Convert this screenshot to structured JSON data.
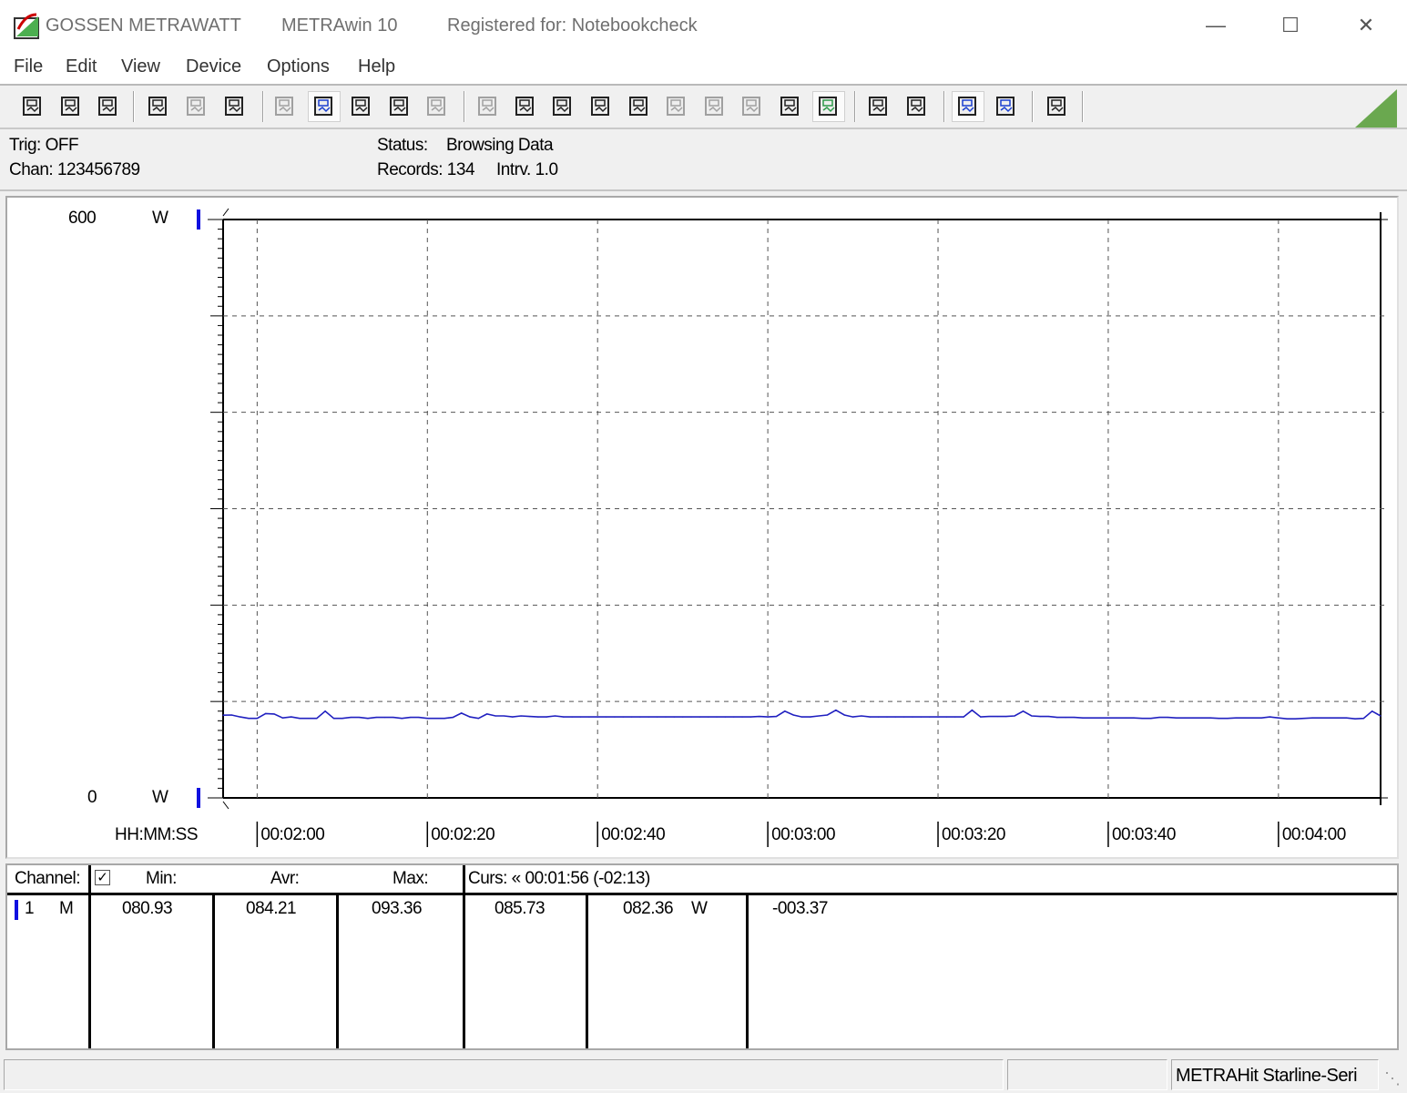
{
  "window": {
    "brand": "GOSSEN METRAWATT",
    "app_title": "METRAwin 10",
    "registration": "Registered for: Notebookcheck",
    "controls": [
      "minimize-icon",
      "maximize-icon",
      "close-icon"
    ]
  },
  "menu": [
    "File",
    "Edit",
    "View",
    "Device",
    "Options",
    "Help"
  ],
  "toolbar": {
    "buttons": [
      {
        "icon": "save-icon"
      },
      {
        "icon": "save-as-icon"
      },
      {
        "icon": "open-folder-icon"
      },
      {
        "icon": "read-memory-icon"
      },
      {
        "icon": "clear-memory-icon",
        "disabled": true
      },
      {
        "icon": "memory-mode-icon"
      },
      {
        "icon": "numeric-display-icon",
        "disabled": true
      },
      {
        "icon": "waveform-view-icon",
        "pressed": true
      },
      {
        "icon": "crosshair-icon"
      },
      {
        "icon": "table-view-icon"
      },
      {
        "icon": "histogram-icon",
        "disabled": true
      },
      {
        "icon": "export-icon",
        "disabled": true
      },
      {
        "icon": "import-icon"
      },
      {
        "icon": "channel-settings-icon"
      },
      {
        "icon": "device-settings-icon"
      },
      {
        "icon": "function-icon"
      },
      {
        "icon": "device-transfer-icon",
        "disabled": true
      },
      {
        "icon": "trigger-icon",
        "disabled": true
      },
      {
        "icon": "sampling-icon",
        "disabled": true
      },
      {
        "icon": "timer-icon"
      },
      {
        "icon": "bug-icon",
        "pressed": true
      },
      {
        "icon": "print-graph-icon"
      },
      {
        "icon": "print-icon"
      },
      {
        "icon": "zoom-waveform-icon",
        "pressed": true
      },
      {
        "icon": "zoom-peak-icon"
      },
      {
        "icon": "comment-icon"
      }
    ],
    "signal_color": "#6aa84f"
  },
  "info": {
    "trig": "Trig: OFF",
    "chan": "Chan:  123456789",
    "status_label": "Status:",
    "status_value": "Browsing Data",
    "records": "Records: 134",
    "interval": "Intrv. 1.0"
  },
  "chart_data": {
    "type": "line",
    "y_top_label": "600",
    "y_bottom_label": "0",
    "y_unit": "W",
    "ylim": [
      0,
      600
    ],
    "y_grid_step": 100,
    "x_label": "HH:MM:SS",
    "x_ticks": [
      "00:02:00",
      "00:02:20",
      "00:02:40",
      "00:03:00",
      "00:03:20",
      "00:03:40",
      "00:04:00"
    ],
    "x_start": "00:01:56",
    "interval_s": 1,
    "grid": true,
    "line_color": "#2020c0",
    "channel_marker_color": "#1010e0",
    "series": [
      {
        "values": [
          85.8,
          86,
          84,
          82.5,
          82.5,
          87.5,
          87,
          83,
          84,
          82.5,
          82.5,
          82.5,
          90,
          82.5,
          82.5,
          83.5,
          83.5,
          82.5,
          83.5,
          83.5,
          83.5,
          82.5,
          83.5,
          83.5,
          82.5,
          82.5,
          82.5,
          83.5,
          88,
          84,
          82.5,
          87,
          85,
          85,
          84,
          85,
          84.5,
          84,
          84,
          85,
          84,
          84,
          84,
          84,
          84,
          84,
          84,
          84,
          84,
          84,
          84,
          84,
          84,
          84,
          84,
          84,
          84,
          84,
          84,
          84,
          84,
          84,
          84,
          84.5,
          84,
          84.5,
          90,
          86,
          84,
          84,
          85,
          86,
          91,
          86,
          84,
          85,
          84,
          84,
          84,
          84,
          84,
          84,
          84,
          84,
          84,
          84,
          84,
          84,
          91,
          84,
          84.5,
          84.5,
          84.5,
          85,
          90,
          85,
          84.5,
          84.5,
          83.5,
          83.5,
          83.5,
          83,
          83,
          83,
          83,
          83,
          83,
          83,
          82.5,
          82.5,
          83.5,
          83.5,
          83,
          83,
          83,
          83,
          83,
          82.5,
          82.5,
          83,
          83,
          83,
          83,
          84,
          83,
          82,
          82,
          82.5,
          83,
          83,
          83,
          83,
          83,
          82,
          82.5,
          90,
          85
        ]
      }
    ]
  },
  "table": {
    "headers": {
      "channel": "Channel:",
      "min": "Min:",
      "avr": "Avr:",
      "max": "Max:",
      "cursor": "Curs: « 00:01:56 (-02:13)"
    },
    "checkbox_checked": true,
    "rows": [
      {
        "channel": "1",
        "mode": "M",
        "min": "080.93",
        "avr": "084.21",
        "max": "093.36",
        "cursor1": "085.73",
        "cursor2": "082.36",
        "unit": "W",
        "delta": "-003.37"
      }
    ]
  },
  "statusbar": {
    "device": "METRAHit Starline-Seri"
  }
}
